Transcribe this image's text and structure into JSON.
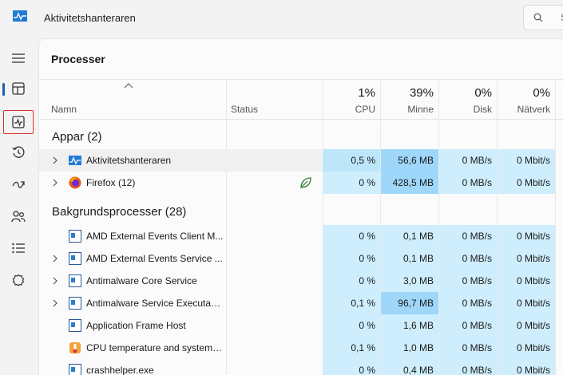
{
  "window": {
    "title": "Aktivitetshanteraren",
    "search_placeholder": "S"
  },
  "page": {
    "title": "Processer"
  },
  "columns": {
    "name": "Namn",
    "status": "Status",
    "cpu": {
      "percent": "1%",
      "label": "CPU"
    },
    "memory": {
      "percent": "39%",
      "label": "Minne"
    },
    "disk": {
      "percent": "0%",
      "label": "Disk"
    },
    "network": {
      "percent": "0%",
      "label": "Nätverk"
    }
  },
  "groups": {
    "apps": "Appar (2)",
    "background": "Bakgrundsprocesser (28)"
  },
  "apps": [
    {
      "name": "Aktivitetshanteraren",
      "cpu": "0,5 %",
      "memory": "56,6 MB",
      "disk": "0 MB/s",
      "network": "0 Mbit/s"
    },
    {
      "name": "Firefox (12)",
      "cpu": "0 %",
      "memory": "428,5 MB",
      "disk": "0 MB/s",
      "network": "0 Mbit/s"
    }
  ],
  "background": [
    {
      "name": "AMD External Events Client M...",
      "cpu": "0 %",
      "memory": "0,1 MB",
      "disk": "0 MB/s",
      "network": "0 Mbit/s"
    },
    {
      "name": "AMD External Events Service ...",
      "cpu": "0 %",
      "memory": "0,1 MB",
      "disk": "0 MB/s",
      "network": "0 Mbit/s"
    },
    {
      "name": "Antimalware Core Service",
      "cpu": "0 %",
      "memory": "3,0 MB",
      "disk": "0 MB/s",
      "network": "0 Mbit/s"
    },
    {
      "name": "Antimalware Service Executable",
      "cpu": "0,1 %",
      "memory": "96,7 MB",
      "disk": "0 MB/s",
      "network": "0 Mbit/s"
    },
    {
      "name": "Application Frame Host",
      "cpu": "0 %",
      "memory": "1,6 MB",
      "disk": "0 MB/s",
      "network": "0 Mbit/s"
    },
    {
      "name": "CPU temperature and system i...",
      "cpu": "0,1 %",
      "memory": "1,0 MB",
      "disk": "0 MB/s",
      "network": "0 Mbit/s"
    },
    {
      "name": "crashhelper.exe",
      "cpu": "0 %",
      "memory": "0,4 MB",
      "disk": "0 MB/s",
      "network": "0 Mbit/s"
    }
  ],
  "sidebar": {
    "items": [
      {
        "icon": "hamburger-menu-icon"
      },
      {
        "icon": "processes-icon",
        "active": true
      },
      {
        "icon": "performance-icon"
      },
      {
        "icon": "app-history-icon"
      },
      {
        "icon": "startup-apps-icon"
      },
      {
        "icon": "users-icon"
      },
      {
        "icon": "details-icon"
      },
      {
        "icon": "services-icon"
      }
    ]
  },
  "colors": {
    "accent": "#1a5fb4",
    "heat_light": "#cfeefd",
    "heat_mid": "#bde6fb",
    "heat_dark": "#9fd7fb"
  }
}
